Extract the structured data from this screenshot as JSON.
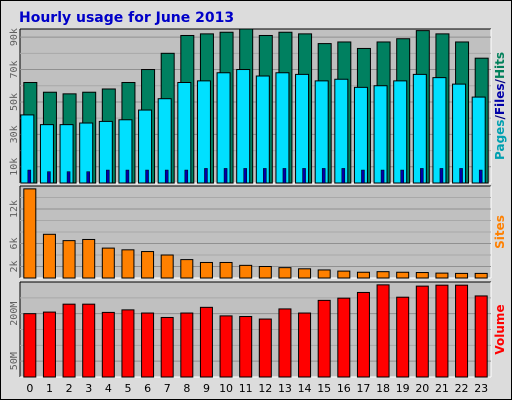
{
  "chart_data": {
    "title": "Hourly usage for June 2013",
    "categories": [
      "0",
      "1",
      "2",
      "3",
      "4",
      "5",
      "6",
      "7",
      "8",
      "9",
      "10",
      "11",
      "12",
      "13",
      "14",
      "15",
      "16",
      "17",
      "18",
      "19",
      "20",
      "21",
      "22",
      "23"
    ],
    "panels": [
      {
        "type": "bar",
        "ylim": [
          0,
          95
        ],
        "ytick_values": [
          10,
          30,
          50,
          70,
          90
        ],
        "ytick_labels": [
          "10k",
          "30k",
          "50k",
          "70k",
          "90k"
        ],
        "legend_parts": [
          {
            "text": "Pages",
            "color": "#00a0b0"
          },
          {
            "text": "/",
            "color": "#000080"
          },
          {
            "text": "Files",
            "color": "#0000a8"
          },
          {
            "text": "/",
            "color": "#000080"
          },
          {
            "text": "Hits",
            "color": "#00805a"
          }
        ],
        "series": [
          {
            "name": "Hits",
            "color": "#008060",
            "values": [
              62,
              56,
              55,
              56,
              58,
              62,
              70,
              80,
              91,
              92,
              93,
              95,
              91,
              93,
              92,
              86,
              87,
              83,
              87,
              89,
              94,
              92,
              87,
              77
            ]
          },
          {
            "name": "Files",
            "color": "#00e0ff",
            "values": [
              42,
              36,
              36,
              37,
              38,
              39,
              45,
              52,
              62,
              63,
              68,
              70,
              66,
              68,
              67,
              63,
              64,
              59,
              60,
              63,
              67,
              65,
              61,
              53
            ]
          },
          {
            "name": "Pages",
            "color": "#0000a8",
            "values": [
              8,
              7,
              7,
              7,
              8,
              8,
              8,
              8,
              8,
              9,
              9,
              9,
              9,
              9,
              9,
              9,
              9,
              8,
              8,
              8,
              9,
              9,
              9,
              8
            ]
          }
        ]
      },
      {
        "type": "bar",
        "ylim": [
          0,
          16000
        ],
        "ytick_values": [
          2000,
          6000,
          12000
        ],
        "ytick_labels": [
          "2k",
          "6k",
          "12k"
        ],
        "legend_parts": [
          {
            "text": "Sites",
            "color": "#ff8000"
          }
        ],
        "series": [
          {
            "name": "Sites",
            "color": "#ff8000",
            "values": [
              15500,
              7600,
              6500,
              6700,
              5200,
              4900,
              4600,
              4000,
              3200,
              2700,
              2700,
              2200,
              2000,
              1800,
              1600,
              1400,
              1200,
              1000,
              1100,
              1000,
              950,
              850,
              800,
              800
            ]
          }
        ]
      },
      {
        "type": "bar",
        "ylim": [
          0,
          300
        ],
        "ytick_values": [
          50,
          200
        ],
        "ytick_labels": [
          "50M",
          "200M"
        ],
        "legend_parts": [
          {
            "text": "Volume",
            "color": "#ff0000"
          }
        ],
        "series": [
          {
            "name": "Volume",
            "color": "#ff0000",
            "values": [
              200,
              205,
              230,
              230,
              204,
              212,
              202,
              188,
              202,
              220,
              193,
              191,
              183,
              215,
              202,
              242,
              249,
              267,
              291,
              252,
              287,
              290,
              290,
              256
            ]
          }
        ]
      }
    ]
  }
}
